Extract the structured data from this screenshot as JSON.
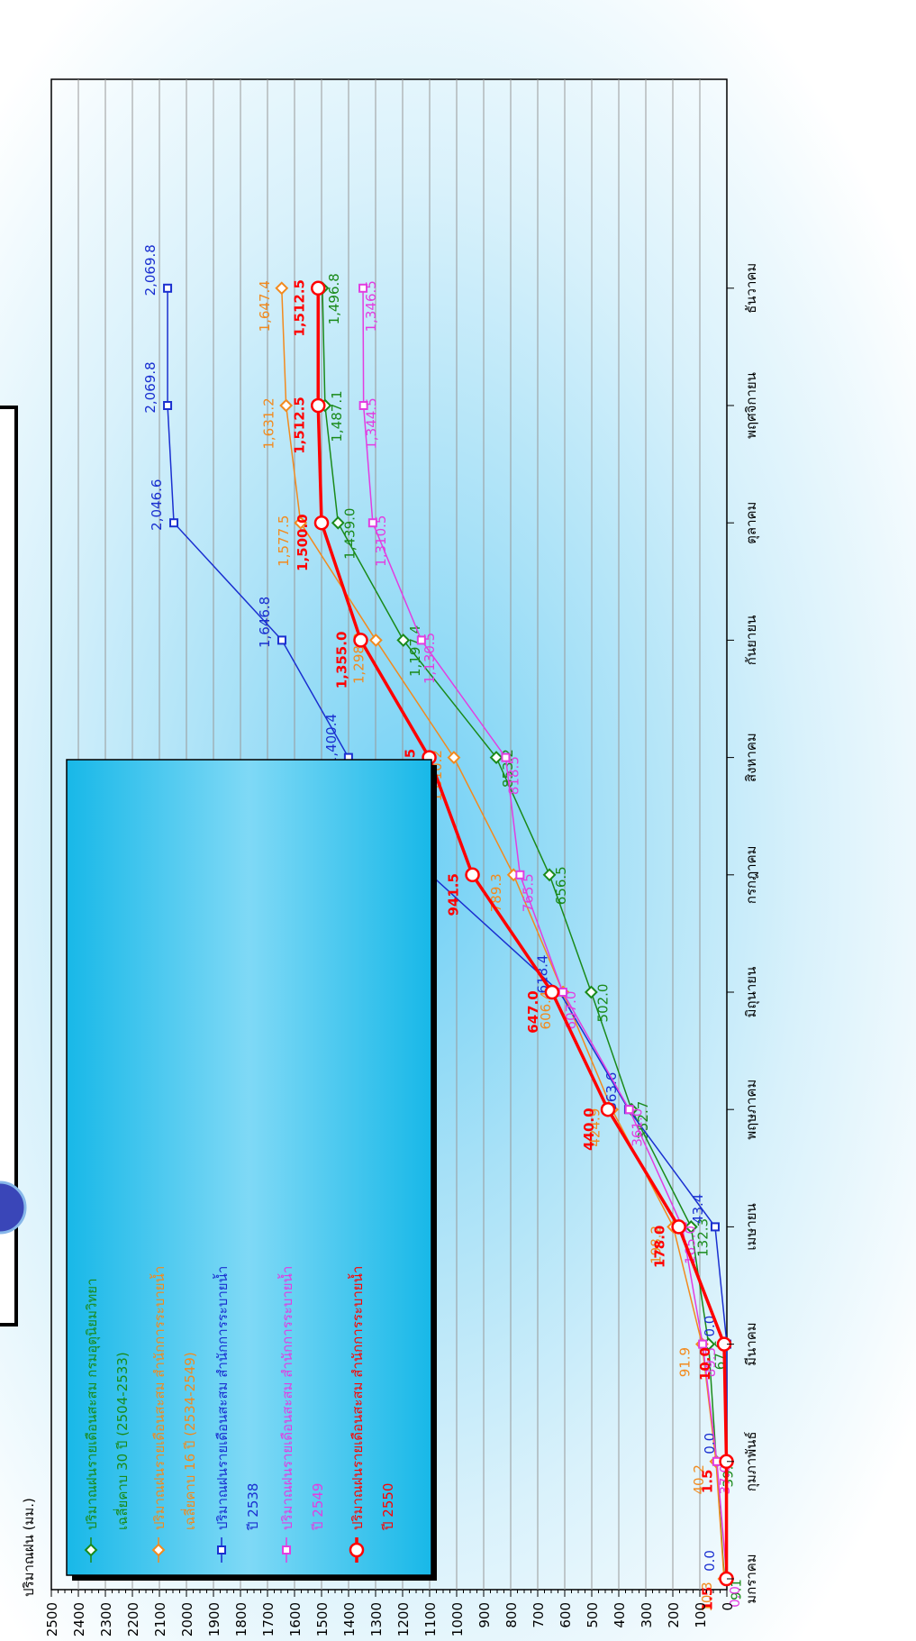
{
  "chart_data": {
    "type": "line",
    "orientation": "rotated-90-cw",
    "ylabel": "ปริมาณฝน (มม.)",
    "xlabel": "",
    "ylim": [
      0,
      2500
    ],
    "y_ticks": [
      "0",
      "100",
      "200",
      "300",
      "400",
      "500",
      "600",
      "700",
      "800",
      "900",
      "1000",
      "1100",
      "1200",
      "1300",
      "1400",
      "1500",
      "1600",
      "1700",
      "1800",
      "1900",
      "2000",
      "2100",
      "2200",
      "2300",
      "2400",
      "2500"
    ],
    "categories": [
      "มกราคม",
      "กุมภาพันธ์",
      "มีนาคม",
      "เมษายน",
      "พฤษภาคม",
      "มิถุนายน",
      "กรกฎาคม",
      "สิงหาคม",
      "กันยายน",
      "ตุลาคม",
      "พฤศจิกายน",
      "ธันวาคม"
    ],
    "grid": true,
    "legend_position": "left-middle",
    "series": [
      {
        "name": "ปริมาณฝนรายเดือนสะสม กรมอุตุนิยมวิทยา",
        "name2": "เฉลี่ยคาบ 30 ปี (2504-2533)",
        "color": "#1a8a1a",
        "marker": "diamond",
        "values": [
          9.1,
          39.0,
          67.6,
          132.3,
          352.7,
          502.0,
          656.5,
          853.2,
          1197.4,
          1439.0,
          1487.1,
          1496.8
        ],
        "labels": [
          "9.1",
          "39.0",
          "67.6",
          "132.3",
          "352.7",
          "502.0",
          "656.5",
          "853.2",
          "1,197.4",
          "1,439.0",
          "1,487.1",
          "1,496.8"
        ]
      },
      {
        "name": "ปริมาณฝนรายเดือนสะสม สำนักการระบายน้ำ",
        "name2": "เฉลี่ยคาบ 16 ปี (2534-2549)",
        "color": "#f28a1e",
        "marker": "diamond",
        "values": [
          10.3,
          40.2,
          91.9,
          198.2,
          424.9,
          606.4,
          789.3,
          1010.2,
          1298.9,
          1577.5,
          1631.2,
          1647.4
        ],
        "labels": [
          "10.3",
          "40.2",
          "91.9",
          "198.2",
          "424.9",
          "606.4",
          "789.3",
          "1,010.2",
          "1,298.9",
          "1,577.5",
          "1,631.2",
          "1,647.4"
        ]
      },
      {
        "name": "ปริมาณฝนรายเดือนสะสม สำนักการระบายน้ำ",
        "name2": "ปี 2538",
        "color": "#1a2fd0",
        "marker": "square",
        "values": [
          0.0,
          0.0,
          0.0,
          43.4,
          363.6,
          618.4,
          1096.0,
          1400.4,
          1646.8,
          2046.6,
          2069.8,
          2069.8
        ],
        "labels": [
          "0.0",
          "0.0",
          "0.0",
          "43.4",
          "363.6",
          "618.4",
          "1,096.0",
          "1,400.4",
          "1,646.8",
          "2,046.6",
          "2,069.8",
          "2,069.8"
        ]
      },
      {
        "name": "ปริมาณฝนรายเดือนสะสม สำนักการระบายน้ำ",
        "name2": "ปี 2549",
        "color": "#e23de0",
        "marker": "square",
        "values": [
          0.0,
          37.0,
          89.5,
          165.0,
          361.0,
          607.0,
          765.5,
          818.5,
          1130.5,
          1310.5,
          1344.5,
          1346.5
        ],
        "labels": [
          "0.0",
          "37.0",
          "89.5",
          "165.0",
          "361.0",
          "607.0",
          "765.5",
          "818.5",
          "1,130.5",
          "1,310.5",
          "1,344.5",
          "1,346.5"
        ]
      },
      {
        "name": "ปริมาณฝนรายเดือนสะสม สำนักการระบายน้ำ",
        "name2": "ปี 2550",
        "color": "#ff0000",
        "marker": "circle",
        "values": [
          1.5,
          1.5,
          10.0,
          178.0,
          440.0,
          647.0,
          941.5,
          1101.5,
          1355.0,
          1500.0,
          1512.5,
          1512.5
        ],
        "labels": [
          "1.5",
          "1.5",
          "10.0",
          "178.0",
          "440.0",
          "647.0",
          "941.5",
          "1,101.5",
          "1,355.0",
          "1,500.0",
          "1,512.5",
          "1,512.5"
        ]
      }
    ]
  }
}
